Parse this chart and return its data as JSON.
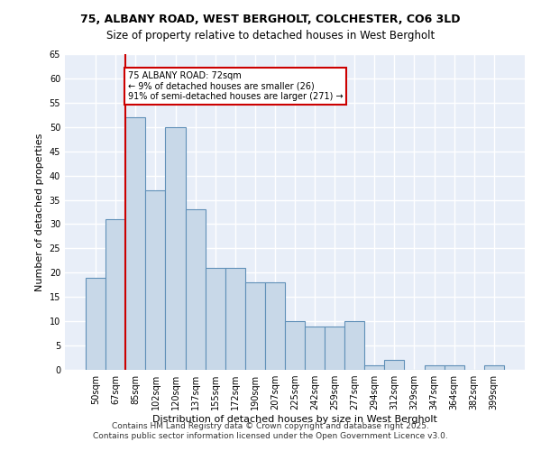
{
  "title_line1": "75, ALBANY ROAD, WEST BERGHOLT, COLCHESTER, CO6 3LD",
  "title_line2": "Size of property relative to detached houses in West Bergholt",
  "xlabel": "Distribution of detached houses by size in West Bergholt",
  "ylabel": "Number of detached properties",
  "categories": [
    "50sqm",
    "67sqm",
    "85sqm",
    "102sqm",
    "120sqm",
    "137sqm",
    "155sqm",
    "172sqm",
    "190sqm",
    "207sqm",
    "225sqm",
    "242sqm",
    "259sqm",
    "277sqm",
    "294sqm",
    "312sqm",
    "329sqm",
    "347sqm",
    "364sqm",
    "382sqm",
    "399sqm"
  ],
  "values": [
    19,
    31,
    52,
    37,
    50,
    33,
    21,
    21,
    18,
    18,
    10,
    9,
    9,
    10,
    1,
    2,
    0,
    1,
    1,
    0,
    1
  ],
  "bar_color": "#c8d8e8",
  "bar_edge_color": "#6090b8",
  "property_size": 72,
  "property_label": "75 ALBANY ROAD: 72sqm",
  "pct_smaller": 9,
  "pct_smaller_count": 26,
  "pct_larger_label": "91% of semi-detached houses are larger (271)",
  "annotation_box_color": "#cc0000",
  "vline_color": "#cc0000",
  "vline_x_index": 1.5,
  "ylim": [
    0,
    65
  ],
  "yticks": [
    0,
    5,
    10,
    15,
    20,
    25,
    30,
    35,
    40,
    45,
    50,
    55,
    60,
    65
  ],
  "bg_color": "#e8eef8",
  "grid_color": "#ffffff",
  "footer_line1": "Contains HM Land Registry data © Crown copyright and database right 2025.",
  "footer_line2": "Contains public sector information licensed under the Open Government Licence v3.0."
}
